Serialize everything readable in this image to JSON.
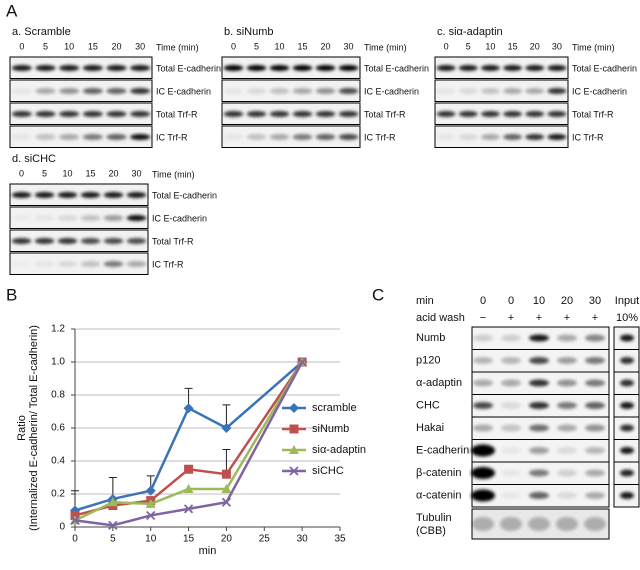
{
  "panel_labels": [
    "A",
    "B",
    "C"
  ],
  "panel_a": {
    "time_unit": "Time (min)",
    "times": [
      "0",
      "5",
      "10",
      "15",
      "20",
      "30"
    ],
    "rows": [
      "Total E-cadherin",
      "IC E-cadherin",
      "Total Trf-R",
      "IC Trf-R"
    ],
    "groups": [
      {
        "title": "a. Scramble"
      },
      {
        "title": "b. siNumb"
      },
      {
        "title": "c. siα-adaptin"
      },
      {
        "title": "d. siCHC"
      }
    ]
  },
  "chart_data": {
    "type": "line",
    "ylabel": [
      "Ratio",
      "(Internalized E-cadherin/ Total E-cadherin)"
    ],
    "xlabel": "min",
    "x": [
      0,
      5,
      10,
      15,
      20,
      30
    ],
    "xlim": [
      0,
      35
    ],
    "xticks": [
      0,
      5,
      10,
      15,
      20,
      25,
      30,
      35
    ],
    "ylim": [
      0,
      1.2
    ],
    "yticks": [
      0,
      0.2,
      0.4,
      0.6,
      0.8,
      {
        "value": 1,
        "label": "1.0"
      },
      1.2
    ],
    "grid": true,
    "legend": "right",
    "series": [
      {
        "name": "scramble",
        "color": "#3b73b9",
        "marker": "diamond",
        "values": [
          0.1,
          0.17,
          0.22,
          0.72,
          0.6,
          1.0
        ],
        "errors": [
          0.12,
          0.13,
          0.09,
          0.12,
          0.14,
          null
        ]
      },
      {
        "name": "siNumb",
        "color": "#c0504d",
        "marker": "square",
        "values": [
          0.07,
          0.13,
          0.16,
          0.35,
          0.32,
          1.0
        ],
        "errors": [
          null,
          null,
          null,
          null,
          0.15,
          null
        ]
      },
      {
        "name": "siα-adaptin",
        "color": "#9bbb59",
        "marker": "triangle",
        "values": [
          0.04,
          0.15,
          0.14,
          0.23,
          0.23,
          1.0
        ]
      },
      {
        "name": "siCHC",
        "color": "#8064a2",
        "marker": "x",
        "values": [
          0.04,
          0.01,
          0.07,
          0.11,
          0.15,
          1.0
        ]
      }
    ]
  },
  "panel_c": {
    "min_label": "min",
    "acid_label": "acid wash",
    "mins": [
      "0",
      "0",
      "10",
      "20",
      "30"
    ],
    "acid": [
      "−",
      "+",
      "+",
      "+",
      "+"
    ],
    "input_label": "Input",
    "input_amount": "10%",
    "rows": [
      "Numb",
      "p120",
      "α-adaptin",
      "CHC",
      "Hakai",
      "E-cadherin",
      "β-catenin",
      "α-catenin"
    ],
    "tubulin": [
      "Tubulin",
      "(CBB)"
    ]
  }
}
